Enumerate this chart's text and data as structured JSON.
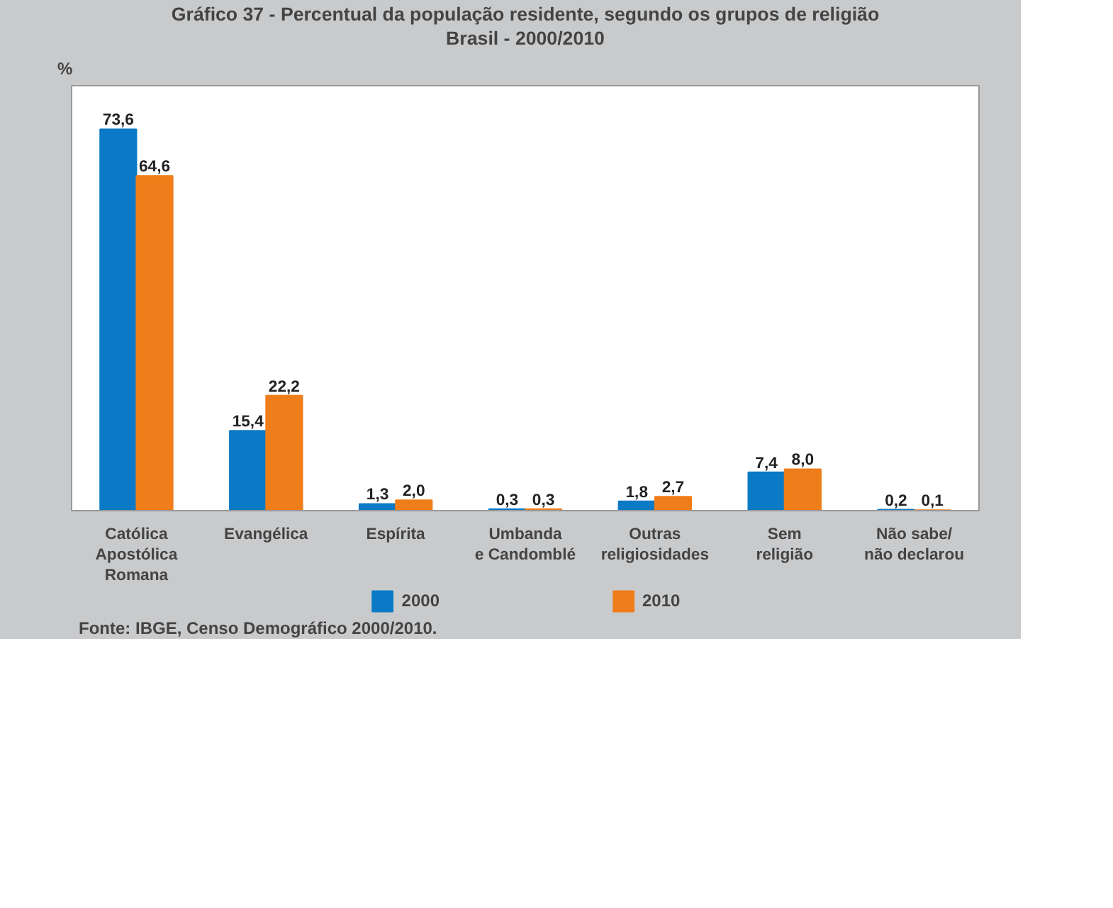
{
  "chart_data": {
    "type": "bar",
    "title": "Gráfico 37 - Percentual da população residente, segundo os grupos de religião",
    "subtitle": "Brasil - 2000/2010",
    "ylabel": "%",
    "categories": [
      "Católica\nApostólica\nRomana",
      "Evangélica",
      "Espírita",
      "Umbanda\ne Candomblé",
      "Outras\nreligiosidades",
      "Sem\nreligião",
      "Não sabe/\nnão declarou"
    ],
    "series": [
      {
        "name": "2000",
        "color": "#0a7ac6",
        "values": [
          73.6,
          15.4,
          1.3,
          0.3,
          1.8,
          7.4,
          0.2
        ],
        "value_labels": [
          "73,6",
          "15,4",
          "1,3",
          "0,3",
          "1,8",
          "7,4",
          "0,2"
        ]
      },
      {
        "name": "2010",
        "color": "#ef7d1a",
        "values": [
          64.6,
          22.2,
          2.0,
          0.3,
          2.7,
          8.0,
          0.1
        ],
        "value_labels": [
          "64,6",
          "22,2",
          "2,0",
          "0,3",
          "2,7",
          "8,0",
          "0,1"
        ]
      }
    ],
    "ylim": [
      0,
      82
    ],
    "tick_labels": "x",
    "grid": false,
    "legend": "bottom",
    "annotations": [
      "Fonte: IBGE, Censo Demográfico 2000/2010."
    ]
  }
}
